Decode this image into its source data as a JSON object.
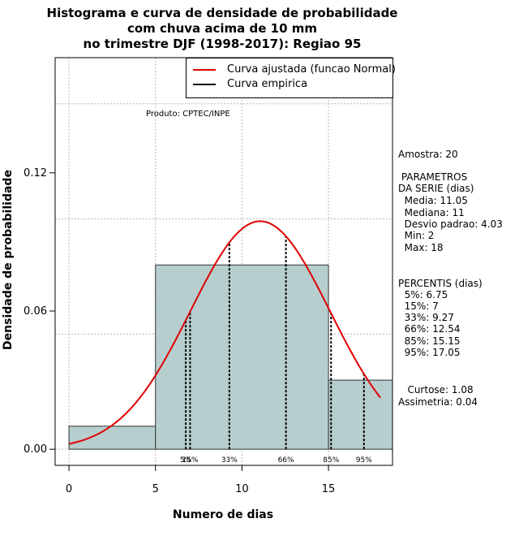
{
  "title": [
    "Histograma e curva de densidade de probabilidade",
    "com chuva acima de 10 mm",
    "no trimestre DJF (1998-2017): Regiao 95"
  ],
  "xlabel": "Numero de dias",
  "ylabel": "Densidade de probabilidade",
  "produto": "Produto: CPTEC/INPE",
  "legend": [
    {
      "label": "Curva ajustada (funcao Normal)",
      "color": "#e00000"
    },
    {
      "label": "Curva empirica",
      "color": "#000000"
    }
  ],
  "side_stats": [
    "Amostra: 20",
    " PARAMETROS",
    "DA SERIE (dias)",
    "  Media: 11.05",
    "  Mediana: 11",
    "  Desvio padrao: 4.03",
    "  Min: 2",
    "  Max: 18",
    "PERCENTIS (dias)",
    "  5%: 6.75",
    "  15%: 7",
    "  33%: 9.27",
    "  66%: 12.54",
    "  85%: 15.15",
    "  95%: 17.05",
    "   Curtose: 1.08",
    "Assimetria: 0.04"
  ],
  "chart_data": {
    "type": "bar",
    "xlim": [
      -0.8,
      18.7
    ],
    "ylim": [
      -0.007,
      0.17
    ],
    "xticks": [
      0,
      5,
      10,
      15
    ],
    "yticks": [
      0.0,
      0.06,
      0.12
    ],
    "ytick_labels": [
      "0.00",
      "0.06",
      "0.12"
    ],
    "xgrid": [
      0,
      5,
      10,
      15
    ],
    "ygrid": [
      0,
      0.05,
      0.1,
      0.15
    ],
    "bars": [
      {
        "x0": 0,
        "x1": 5,
        "density": 0.01
      },
      {
        "x0": 5,
        "x1": 15,
        "density": 0.08
      },
      {
        "x0": 15,
        "x1": 18.7,
        "density": 0.03
      }
    ],
    "bar_fill": "#b7cece",
    "normal_fit": {
      "mean": 11.05,
      "sd": 4.03,
      "x_from": 0,
      "x_to": 18,
      "color": "#e00000"
    },
    "percentiles": [
      {
        "label": "5%",
        "value": 6.75
      },
      {
        "label": "15%",
        "value": 7.0
      },
      {
        "label": "33%",
        "value": 9.27
      },
      {
        "label": "66%",
        "value": 12.54
      },
      {
        "label": "85%",
        "value": 15.15
      },
      {
        "label": "95%",
        "value": 17.05
      }
    ]
  }
}
